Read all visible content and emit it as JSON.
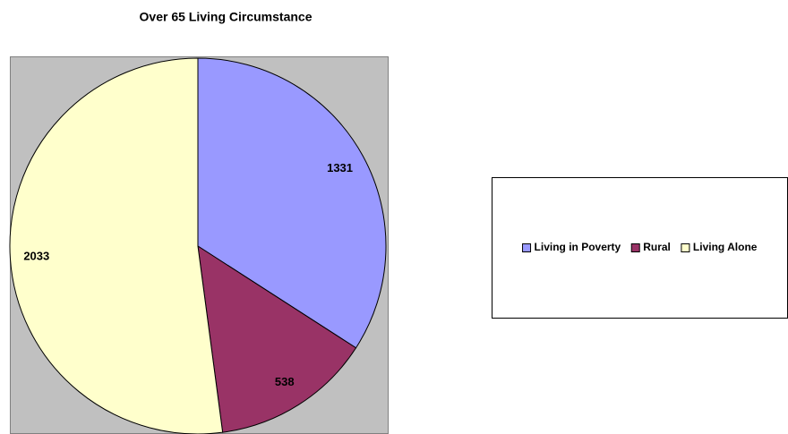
{
  "chart_data": {
    "type": "pie",
    "title": "Over 65 Living Circumstance",
    "categories": [
      "Living in Poverty",
      "Rural",
      "Living Alone"
    ],
    "values": [
      1331,
      538,
      2033
    ],
    "colors": [
      "#9999ff",
      "#993366",
      "#ffffcc"
    ],
    "legend": "right"
  }
}
